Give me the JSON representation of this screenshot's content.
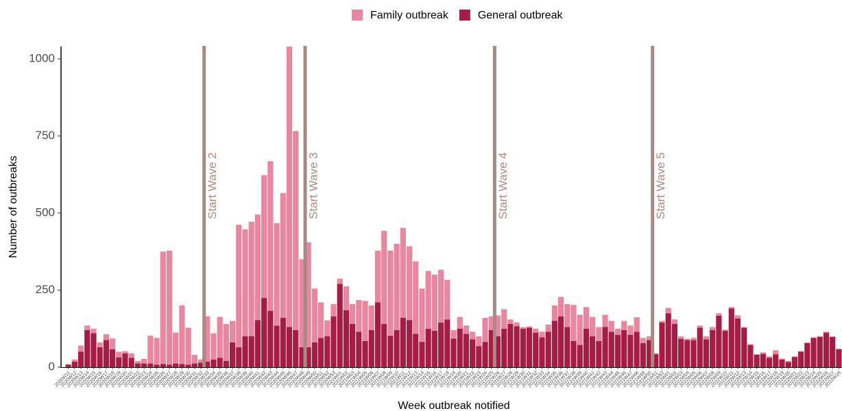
{
  "chart_data": {
    "type": "stacked_bar",
    "x_label": "Week outbreak notified",
    "y_label": "Number of outbreaks",
    "ylim": [
      0,
      1040
    ],
    "yticks": [
      0,
      250,
      500,
      750,
      1000
    ],
    "categories": [
      "2020W11",
      "2020W12",
      "2020W13",
      "2020W14",
      "2020W15",
      "2020W16",
      "2020W17",
      "2020W18",
      "2020W19",
      "2020W20",
      "2020W21",
      "2020W22",
      "2020W23",
      "2020W24",
      "2020W25",
      "2020W26",
      "2020W27",
      "2020W28",
      "2020W29",
      "2020W30",
      "2020W31",
      "2020W32",
      "2020W33",
      "2020W34",
      "2020W35",
      "2020W36",
      "2020W37",
      "2020W38",
      "2020W39",
      "2020W40",
      "2020W41",
      "2020W42",
      "2020W43",
      "2020W44",
      "2020W45",
      "2020W46",
      "2020W47",
      "2020W48",
      "2020W49",
      "2020W50",
      "2020W51",
      "2020W52",
      "2020W53",
      "2021W01",
      "2021W02",
      "2021W03",
      "2021W04",
      "2021W05",
      "2021W06",
      "2021W07",
      "2021W08",
      "2021W09",
      "2021W10",
      "2021W11",
      "2021W12",
      "2021W13",
      "2021W14",
      "2021W15",
      "2021W16",
      "2021W17",
      "2021W18",
      "2021W19",
      "2021W20",
      "2021W21",
      "2021W22",
      "2021W23",
      "2021W24",
      "2021W25",
      "2021W26",
      "2021W27",
      "2021W28",
      "2021W29",
      "2021W30",
      "2021W31",
      "2021W32",
      "2021W33",
      "2021W34",
      "2021W35",
      "2021W36",
      "2021W37",
      "2021W38",
      "2021W39",
      "2021W40",
      "2021W41",
      "2021W42",
      "2021W43",
      "2021W44",
      "2021W45",
      "2021W46",
      "2021W47",
      "2021W48",
      "2021W49",
      "2021W50",
      "2021W51",
      "2021W52",
      "2022W01",
      "2022W02",
      "2022W03",
      "2022W04",
      "2022W05",
      "2022W06",
      "2022W07",
      "2022W08",
      "2022W09",
      "2022W10",
      "2022W11",
      "2022W12",
      "2022W13",
      "2022W14",
      "2022W15",
      "2022W16",
      "2022W17",
      "2022W18",
      "2022W19",
      "2022W20",
      "2022W21",
      "2022W22",
      "2022W23",
      "2022W24",
      "2022W25",
      "2022W26",
      "2022W27",
      "2022W28"
    ],
    "series": [
      {
        "name": "General outbreak",
        "color": "#a51c45",
        "values": [
          8,
          18,
          50,
          120,
          110,
          65,
          88,
          58,
          32,
          45,
          30,
          12,
          12,
          12,
          8,
          10,
          8,
          12,
          10,
          8,
          12,
          15,
          18,
          25,
          30,
          20,
          80,
          65,
          100,
          100,
          153,
          225,
          183,
          135,
          160,
          130,
          120,
          65,
          65,
          80,
          95,
          100,
          165,
          270,
          185,
          140,
          115,
          85,
          120,
          210,
          140,
          102,
          120,
          160,
          153,
          108,
          82,
          125,
          118,
          145,
          155,
          93,
          125,
          108,
          90,
          68,
          82,
          120,
          100,
          125,
          140,
          133,
          125,
          128,
          112,
          97,
          115,
          150,
          165,
          130,
          85,
          72,
          125,
          100,
          85,
          130,
          115,
          105,
          120,
          105,
          115,
          78,
          88,
          42,
          145,
          175,
          140,
          92,
          88,
          88,
          128,
          90,
          120,
          167,
          118,
          190,
          158,
          128,
          72,
          40,
          43,
          30,
          42,
          25,
          17,
          33,
          50,
          78,
          95,
          98,
          112,
          98,
          58
        ]
      },
      {
        "name": "Family outbreak",
        "color": "#e8879f",
        "values": [
          2,
          7,
          20,
          15,
          15,
          15,
          19,
          35,
          18,
          7,
          15,
          8,
          15,
          90,
          87,
          365,
          370,
          100,
          190,
          120,
          28,
          10,
          147,
          85,
          133,
          120,
          70,
          397,
          347,
          372,
          342,
          398,
          485,
          332,
          405,
          910,
          646,
          285,
          340,
          175,
          115,
          52,
          40,
          17,
          77,
          65,
          103,
          130,
          80,
          168,
          302,
          276,
          280,
          292,
          239,
          235,
          173,
          187,
          182,
          171,
          128,
          27,
          38,
          27,
          25,
          32,
          78,
          45,
          68,
          63,
          15,
          12,
          5,
          4,
          13,
          18,
          23,
          50,
          63,
          75,
          117,
          98,
          70,
          63,
          45,
          40,
          35,
          20,
          30,
          30,
          47,
          17,
          12,
          3,
          5,
          17,
          15,
          8,
          4,
          7,
          7,
          10,
          10,
          8,
          4,
          5,
          10,
          2,
          3,
          2,
          5,
          5,
          13,
          3,
          3,
          2,
          2,
          2,
          2,
          3,
          3,
          2,
          2
        ]
      }
    ],
    "legend_order": [
      1,
      0
    ],
    "legend": "top",
    "annotations": [
      {
        "text": "Start Wave 2",
        "category": "2020W33"
      },
      {
        "text": "Start Wave 3",
        "category": "2020W49"
      },
      {
        "text": "Start Wave 4",
        "category": "2021W26"
      },
      {
        "text": "Start Wave 5",
        "category": "2021W51"
      }
    ],
    "annotation_color": "#a88a82"
  }
}
